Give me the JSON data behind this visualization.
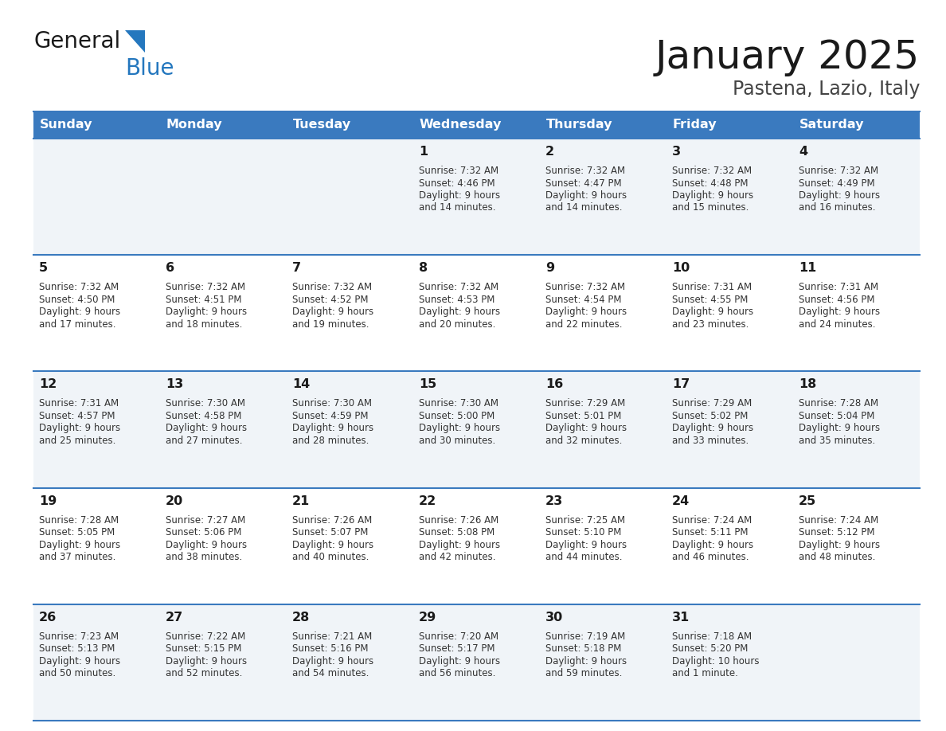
{
  "title": "January 2025",
  "subtitle": "Pastena, Lazio, Italy",
  "header_bg": "#3a7abf",
  "header_text_color": "#ffffff",
  "cell_bg_odd": "#f0f4f8",
  "cell_bg_even": "#ffffff",
  "border_color": "#3a7abf",
  "text_color": "#333333",
  "days_of_week": [
    "Sunday",
    "Monday",
    "Tuesday",
    "Wednesday",
    "Thursday",
    "Friday",
    "Saturday"
  ],
  "weeks": [
    [
      {
        "day": "",
        "sunrise": "",
        "sunset": "",
        "daylight": ""
      },
      {
        "day": "",
        "sunrise": "",
        "sunset": "",
        "daylight": ""
      },
      {
        "day": "",
        "sunrise": "",
        "sunset": "",
        "daylight": ""
      },
      {
        "day": "1",
        "sunrise": "7:32 AM",
        "sunset": "4:46 PM",
        "daylight": "9 hours and 14 minutes."
      },
      {
        "day": "2",
        "sunrise": "7:32 AM",
        "sunset": "4:47 PM",
        "daylight": "9 hours and 14 minutes."
      },
      {
        "day": "3",
        "sunrise": "7:32 AM",
        "sunset": "4:48 PM",
        "daylight": "9 hours and 15 minutes."
      },
      {
        "day": "4",
        "sunrise": "7:32 AM",
        "sunset": "4:49 PM",
        "daylight": "9 hours and 16 minutes."
      }
    ],
    [
      {
        "day": "5",
        "sunrise": "7:32 AM",
        "sunset": "4:50 PM",
        "daylight": "9 hours and 17 minutes."
      },
      {
        "day": "6",
        "sunrise": "7:32 AM",
        "sunset": "4:51 PM",
        "daylight": "9 hours and 18 minutes."
      },
      {
        "day": "7",
        "sunrise": "7:32 AM",
        "sunset": "4:52 PM",
        "daylight": "9 hours and 19 minutes."
      },
      {
        "day": "8",
        "sunrise": "7:32 AM",
        "sunset": "4:53 PM",
        "daylight": "9 hours and 20 minutes."
      },
      {
        "day": "9",
        "sunrise": "7:32 AM",
        "sunset": "4:54 PM",
        "daylight": "9 hours and 22 minutes."
      },
      {
        "day": "10",
        "sunrise": "7:31 AM",
        "sunset": "4:55 PM",
        "daylight": "9 hours and 23 minutes."
      },
      {
        "day": "11",
        "sunrise": "7:31 AM",
        "sunset": "4:56 PM",
        "daylight": "9 hours and 24 minutes."
      }
    ],
    [
      {
        "day": "12",
        "sunrise": "7:31 AM",
        "sunset": "4:57 PM",
        "daylight": "9 hours and 25 minutes."
      },
      {
        "day": "13",
        "sunrise": "7:30 AM",
        "sunset": "4:58 PM",
        "daylight": "9 hours and 27 minutes."
      },
      {
        "day": "14",
        "sunrise": "7:30 AM",
        "sunset": "4:59 PM",
        "daylight": "9 hours and 28 minutes."
      },
      {
        "day": "15",
        "sunrise": "7:30 AM",
        "sunset": "5:00 PM",
        "daylight": "9 hours and 30 minutes."
      },
      {
        "day": "16",
        "sunrise": "7:29 AM",
        "sunset": "5:01 PM",
        "daylight": "9 hours and 32 minutes."
      },
      {
        "day": "17",
        "sunrise": "7:29 AM",
        "sunset": "5:02 PM",
        "daylight": "9 hours and 33 minutes."
      },
      {
        "day": "18",
        "sunrise": "7:28 AM",
        "sunset": "5:04 PM",
        "daylight": "9 hours and 35 minutes."
      }
    ],
    [
      {
        "day": "19",
        "sunrise": "7:28 AM",
        "sunset": "5:05 PM",
        "daylight": "9 hours and 37 minutes."
      },
      {
        "day": "20",
        "sunrise": "7:27 AM",
        "sunset": "5:06 PM",
        "daylight": "9 hours and 38 minutes."
      },
      {
        "day": "21",
        "sunrise": "7:26 AM",
        "sunset": "5:07 PM",
        "daylight": "9 hours and 40 minutes."
      },
      {
        "day": "22",
        "sunrise": "7:26 AM",
        "sunset": "5:08 PM",
        "daylight": "9 hours and 42 minutes."
      },
      {
        "day": "23",
        "sunrise": "7:25 AM",
        "sunset": "5:10 PM",
        "daylight": "9 hours and 44 minutes."
      },
      {
        "day": "24",
        "sunrise": "7:24 AM",
        "sunset": "5:11 PM",
        "daylight": "9 hours and 46 minutes."
      },
      {
        "day": "25",
        "sunrise": "7:24 AM",
        "sunset": "5:12 PM",
        "daylight": "9 hours and 48 minutes."
      }
    ],
    [
      {
        "day": "26",
        "sunrise": "7:23 AM",
        "sunset": "5:13 PM",
        "daylight": "9 hours and 50 minutes."
      },
      {
        "day": "27",
        "sunrise": "7:22 AM",
        "sunset": "5:15 PM",
        "daylight": "9 hours and 52 minutes."
      },
      {
        "day": "28",
        "sunrise": "7:21 AM",
        "sunset": "5:16 PM",
        "daylight": "9 hours and 54 minutes."
      },
      {
        "day": "29",
        "sunrise": "7:20 AM",
        "sunset": "5:17 PM",
        "daylight": "9 hours and 56 minutes."
      },
      {
        "day": "30",
        "sunrise": "7:19 AM",
        "sunset": "5:18 PM",
        "daylight": "9 hours and 59 minutes."
      },
      {
        "day": "31",
        "sunrise": "7:18 AM",
        "sunset": "5:20 PM",
        "daylight": "10 hours and 1 minute."
      },
      {
        "day": "",
        "sunrise": "",
        "sunset": "",
        "daylight": ""
      }
    ]
  ]
}
